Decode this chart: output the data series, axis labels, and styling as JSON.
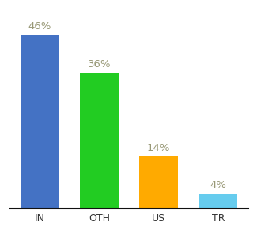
{
  "categories": [
    "IN",
    "OTH",
    "US",
    "TR"
  ],
  "values": [
    46,
    36,
    14,
    4
  ],
  "bar_colors": [
    "#4472c4",
    "#22cc22",
    "#ffaa00",
    "#66ccee"
  ],
  "label_color": "#999977",
  "background_color": "#ffffff",
  "ylim": [
    0,
    52
  ],
  "bar_width": 0.65,
  "xlabel_fontsize": 9,
  "label_fontsize": 9.5
}
